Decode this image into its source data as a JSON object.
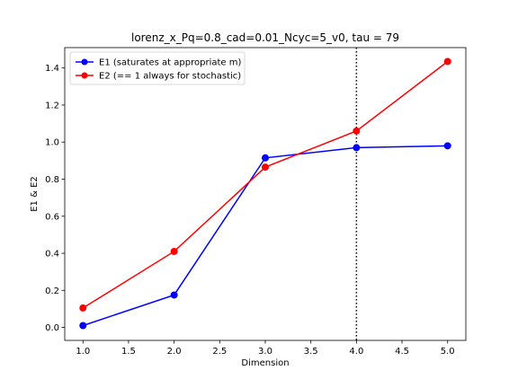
{
  "chart_data": {
    "type": "line",
    "title": "lorenz_x_Pq=0.8_cad=0.01_Ncyc=5_v0, tau = 79",
    "xlabel": "Dimension",
    "ylabel": "E1 & E2",
    "x": [
      1.0,
      2.0,
      3.0,
      4.0,
      5.0
    ],
    "x_ticks": [
      "1.0",
      "1.5",
      "2.0",
      "2.5",
      "3.0",
      "3.5",
      "4.0",
      "4.5",
      "5.0"
    ],
    "y_ticks": [
      "0.0",
      "0.2",
      "0.4",
      "0.6",
      "0.8",
      "1.0",
      "1.2",
      "1.4"
    ],
    "xlim": [
      0.8,
      5.2
    ],
    "ylim": [
      -0.07,
      1.51
    ],
    "vline_x": 4.0,
    "grid": false,
    "legend_position": "upper-left",
    "series": [
      {
        "name": "E1 (saturates at appropriate m)",
        "color": "#0000ff",
        "values": [
          0.01,
          0.175,
          0.915,
          0.97,
          0.98
        ]
      },
      {
        "name": "E2 (== 1 always for stochastic)",
        "color": "#ff0000",
        "values": [
          0.105,
          0.41,
          0.865,
          1.06,
          1.435
        ]
      }
    ]
  }
}
